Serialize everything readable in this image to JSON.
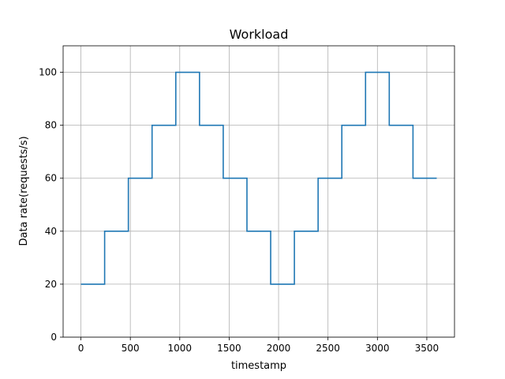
{
  "chart_data": {
    "type": "line",
    "step": true,
    "title": "Workload",
    "xlabel": "timestamp",
    "ylabel": "Data rate(requests/s)",
    "xlim": [
      -180,
      3780
    ],
    "ylim": [
      0,
      110
    ],
    "grid": true,
    "xticks": [
      0,
      500,
      1000,
      1500,
      2000,
      2500,
      3000,
      3500
    ],
    "yticks": [
      0,
      20,
      40,
      60,
      80,
      100
    ],
    "xtick_labels": [
      "0",
      "500",
      "1000",
      "1500",
      "2000",
      "2500",
      "3000",
      "3500"
    ],
    "ytick_labels": [
      "0",
      "20",
      "40",
      "60",
      "80",
      "100"
    ],
    "series": [
      {
        "name": "workload",
        "color": "#1f77b4",
        "x": [
          0,
          240,
          240,
          480,
          480,
          720,
          720,
          960,
          960,
          1200,
          1200,
          1440,
          1440,
          1680,
          1680,
          1920,
          1920,
          2160,
          2160,
          2400,
          2400,
          2640,
          2640,
          2880,
          2880,
          3120,
          3120,
          3360,
          3360,
          3600
        ],
        "y": [
          20,
          20,
          40,
          40,
          60,
          60,
          80,
          80,
          100,
          100,
          80,
          80,
          60,
          60,
          40,
          40,
          20,
          20,
          40,
          40,
          60,
          60,
          80,
          80,
          100,
          100,
          80,
          80,
          60,
          60
        ]
      }
    ]
  }
}
